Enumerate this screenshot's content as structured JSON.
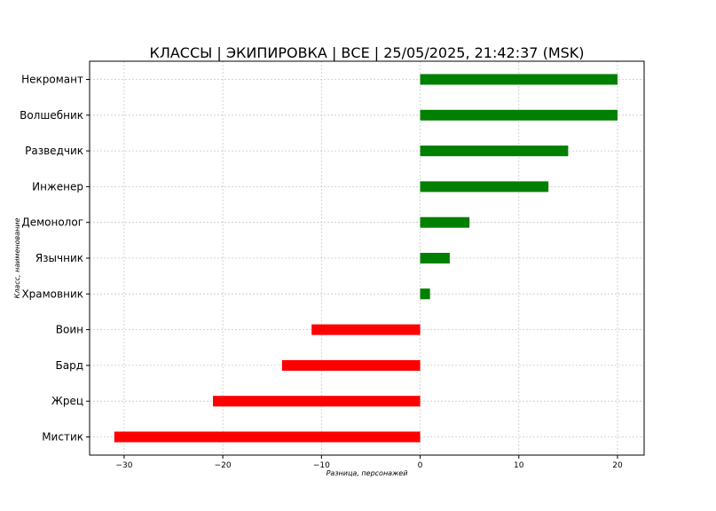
{
  "chart_data": {
    "type": "bar",
    "orientation": "horizontal",
    "title": "КЛАССЫ | ЭКИПИРОВКА | ВСЕ | 25/05/2025, 21:42:37 (MSK)",
    "xlabel": "Разница, персонажей",
    "ylabel": "Класс, наименование",
    "categories": [
      "Некромант",
      "Волшебник",
      "Разведчик",
      "Инженер",
      "Демонолог",
      "Язычник",
      "Храмовник",
      "Воин",
      "Бард",
      "Жрец",
      "Мистик"
    ],
    "values": [
      20,
      20,
      15,
      13,
      5,
      3,
      1,
      -11,
      -14,
      -21,
      -31
    ],
    "xlim": [
      -33.5,
      22.7
    ],
    "xticks": [
      -30,
      -20,
      -10,
      0,
      10,
      20
    ],
    "grid": true,
    "colors": {
      "positive": "#008000",
      "negative": "#ff0000"
    }
  }
}
